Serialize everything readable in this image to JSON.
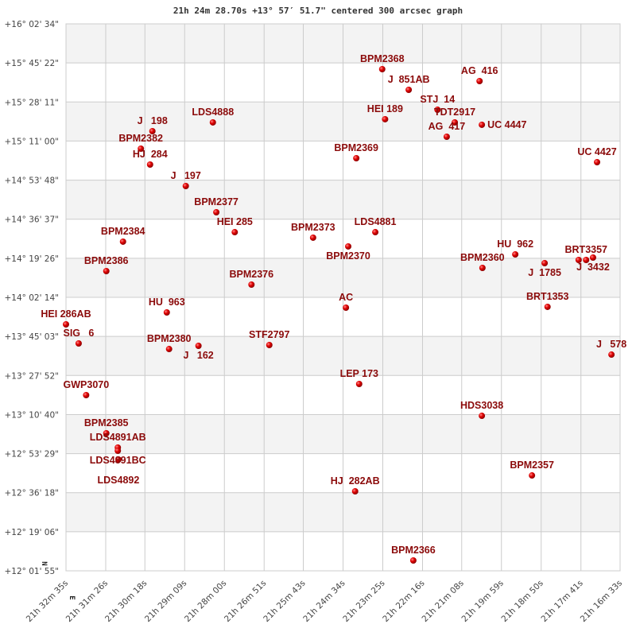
{
  "chart_data": {
    "type": "scatter",
    "title": "21h 24m 28.70s +13° 57′ 51.7\" centered 300 arcsec graph",
    "xlabel": "",
    "ylabel": "",
    "x_reversed": true,
    "xlim": [
      "21h 32m 35s",
      "21h 16m 33s"
    ],
    "ylim": [
      "+12° 01' 55\"",
      "+16° 02' 34\""
    ],
    "grid": true,
    "banded_background": true,
    "compass": {
      "north": "N",
      "east": "E"
    },
    "x_ticks": [
      "21h 32m 35s",
      "21h 31m 26s",
      "21h 30m 18s",
      "21h 29m 09s",
      "21h 28m 00s",
      "21h 26m 51s",
      "21h 25m 43s",
      "21h 24m 34s",
      "21h 23m 25s",
      "21h 22m 16s",
      "21h 21m 08s",
      "21h 19m 59s",
      "21h 18m 50s",
      "21h 17m 41s",
      "21h 16m 33s"
    ],
    "y_ticks": [
      "+16° 02' 34\"",
      "+15° 45' 22\"",
      "+15° 28' 11\"",
      "+15° 11' 00\"",
      "+14° 53' 48\"",
      "+14° 36' 37\"",
      "+14° 19' 26\"",
      "+14° 02' 14\"",
      "+13° 45' 03\"",
      "+13° 27' 52\"",
      "+13° 10' 40\"",
      "+12° 53' 29\"",
      "+12° 36' 18\"",
      "+12° 19' 06\"",
      "+12° 01' 55\""
    ],
    "colors": {
      "point": "#e00000",
      "label": "#8b0a0a",
      "band": "#f3f3f3",
      "grid": "#cccccc"
    },
    "points": [
      {
        "label": "BPM2368",
        "ra": "21h 23m 26s",
        "dec": "+15° 42' 38\""
      },
      {
        "label": "J  851AB",
        "ra": "21h 22m 40s",
        "dec": "+15° 33' 32\""
      },
      {
        "label": "AG  416",
        "ra": "21h 20m 37s",
        "dec": "+15° 37' 23\""
      },
      {
        "label": "HEI 189",
        "ra": "21h 23m 21s",
        "dec": "+15° 20' 36\""
      },
      {
        "label": "STJ  14",
        "ra": "21h 21m 50s",
        "dec": "+15° 24' 47\""
      },
      {
        "label": "TDT2917",
        "ra": "21h 21m 20s",
        "dec": "+15° 19' 12\""
      },
      {
        "label": "AG  417",
        "ra": "21h 21m 34s",
        "dec": "+15° 12' 54\""
      },
      {
        "label": "UC 4447",
        "ra": "21h 20m 33s",
        "dec": "+15° 18' 09\""
      },
      {
        "label": "BPM2369",
        "ra": "21h 24m 11s",
        "dec": "+15° 03' 27\""
      },
      {
        "label": "UC 4427",
        "ra": "21h 17m 13s",
        "dec": "+15° 01' 42\""
      },
      {
        "label": "LDS4888",
        "ra": "21h 28m 20s",
        "dec": "+15° 19' 12\""
      },
      {
        "label": "J   198",
        "ra": "21h 30m 05s",
        "dec": "+15° 15' 21\""
      },
      {
        "label": "BPM2382",
        "ra": "21h 30m 25s",
        "dec": "+15° 07' 39\""
      },
      {
        "label": "HJ  284",
        "ra": "21h 30m 09s",
        "dec": "+15° 00' 39\""
      },
      {
        "label": "J   197",
        "ra": "21h 29m 07s",
        "dec": "+14° 51' 13\""
      },
      {
        "label": "BPM2377",
        "ra": "21h 28m 14s",
        "dec": "+14° 39' 40\""
      },
      {
        "label": "HEI 285",
        "ra": "21h 27m 42s",
        "dec": "+14° 30' 55\""
      },
      {
        "label": "BPM2384",
        "ra": "21h 30m 56s",
        "dec": "+14° 26' 44\""
      },
      {
        "label": "BPM2373",
        "ra": "21h 25m 26s",
        "dec": "+14° 28' 29\""
      },
      {
        "label": "LDS4881",
        "ra": "21h 23m 38s",
        "dec": "+14° 30' 55\""
      },
      {
        "label": "BPM2370",
        "ra": "21h 24m 25s",
        "dec": "+14° 24' 38\""
      },
      {
        "label": "HU  962",
        "ra": "21h 19m 35s",
        "dec": "+14° 21' 08\""
      },
      {
        "label": "J  1785",
        "ra": "21h 18m 44s",
        "dec": "+14° 17' 17\""
      },
      {
        "label": "",
        "ra": "21h 17m 45s",
        "dec": "+14° 18' 41\""
      },
      {
        "label": "BRT3357",
        "ra": "21h 17m 32s",
        "dec": "+14° 18' 41\""
      },
      {
        "label": "J  3432",
        "ra": "21h 17m 20s",
        "dec": "+14° 19' 44\""
      },
      {
        "label": "BPM2360",
        "ra": "21h 20m 32s",
        "dec": "+14° 15' 11\""
      },
      {
        "label": "BPM2386",
        "ra": "21h 31m 25s",
        "dec": "+14° 13' 47\""
      },
      {
        "label": "BPM2376",
        "ra": "21h 27m 13s",
        "dec": "+14° 07' 50\""
      },
      {
        "label": "AC",
        "ra": "21h 24m 29s",
        "dec": "+13° 57' 42\""
      },
      {
        "label": "BRT1353",
        "ra": "21h 18m 39s",
        "dec": "+13° 58' 03\""
      },
      {
        "label": "HU  963",
        "ra": "21h 29m 40s",
        "dec": "+13° 55' 36\""
      },
      {
        "label": "HEI 286AB",
        "ra": "21h 32m 35s",
        "dec": "+13° 50' 21\""
      },
      {
        "label": "SIG   6",
        "ra": "21h 32m 13s",
        "dec": "+13° 41' 57\""
      },
      {
        "label": "BPM2380",
        "ra": "21h 29m 36s",
        "dec": "+13° 39' 30\""
      },
      {
        "label": "J   162",
        "ra": "21h 28m 45s",
        "dec": "+13° 40' 54\""
      },
      {
        "label": "STF2797",
        "ra": "21h 26m 42s",
        "dec": "+13° 41' 15\""
      },
      {
        "label": "J   578",
        "ra": "21h 16m 48s",
        "dec": "+13° 37' 03\""
      },
      {
        "label": "LEP 173",
        "ra": "21h 24m 06s",
        "dec": "+13° 24' 07\""
      },
      {
        "label": "GWP3070",
        "ra": "21h 32m 00s",
        "dec": "+13° 19' 13\""
      },
      {
        "label": "HDS3038",
        "ra": "21h 20m 33s",
        "dec": "+13° 10' 07\""
      },
      {
        "label": "BPM2385",
        "ra": "21h 31m 25s",
        "dec": "+13° 02' 26\""
      },
      {
        "label": "LDS4891AB",
        "ra": "21h 31m 05s",
        "dec": "+12° 56' 08\""
      },
      {
        "label": "LDS4891BC",
        "ra": "21h 31m 05s",
        "dec": "+12° 54' 44\""
      },
      {
        "label": "LDS4892",
        "ra": "21h 31m 04s",
        "dec": "+12° 50' 53\""
      },
      {
        "label": "BPM2357",
        "ra": "21h 19m 06s",
        "dec": "+12° 43' 53\""
      },
      {
        "label": "HJ  282AB",
        "ra": "21h 24m 13s",
        "dec": "+12° 36' 54\""
      },
      {
        "label": "BPM2366",
        "ra": "21h 22m 32s",
        "dec": "+12° 06' 28\""
      }
    ]
  }
}
